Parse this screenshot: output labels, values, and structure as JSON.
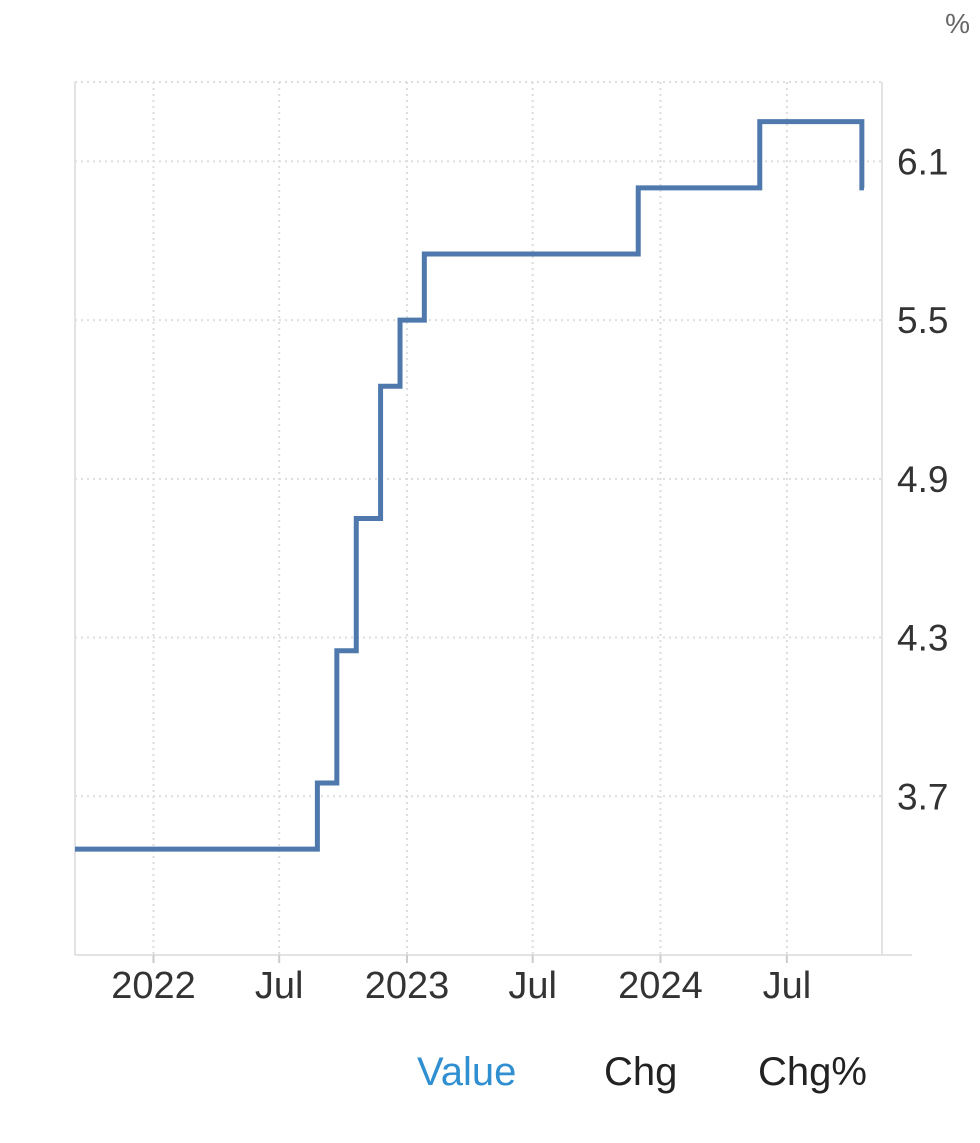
{
  "unit_label": "%",
  "colors": {
    "line": "#4f79ad",
    "active_tab": "#2f8fd0",
    "inactive_tab": "#222222",
    "grid": "#dddddd"
  },
  "tabs": [
    {
      "label": "Value",
      "active": true
    },
    {
      "label": "Chg",
      "active": false
    },
    {
      "label": "Chg%",
      "active": false
    }
  ],
  "chart_data": {
    "type": "line",
    "step": true,
    "title": "",
    "xlabel": "",
    "ylabel": "%",
    "grid": true,
    "xlim": [
      "2021-09-10",
      "2024-11-15"
    ],
    "ylim": [
      3.1,
      6.4
    ],
    "x_ticks": [
      {
        "date": "2022-01-01",
        "label": "2022"
      },
      {
        "date": "2022-07-01",
        "label": "Jul"
      },
      {
        "date": "2023-01-01",
        "label": "2023"
      },
      {
        "date": "2023-07-01",
        "label": "Jul"
      },
      {
        "date": "2024-01-01",
        "label": "2024"
      },
      {
        "date": "2024-07-01",
        "label": "Jul"
      }
    ],
    "y_ticks": [
      3.7,
      4.3,
      4.9,
      5.5,
      6.1
    ],
    "series": [
      {
        "points": [
          {
            "x": "2021-09-10",
            "y": 3.5
          },
          {
            "x": "2022-08-25",
            "y": 3.75
          },
          {
            "x": "2022-09-22",
            "y": 4.25
          },
          {
            "x": "2022-10-20",
            "y": 4.75
          },
          {
            "x": "2022-11-24",
            "y": 5.25
          },
          {
            "x": "2022-12-22",
            "y": 5.5
          },
          {
            "x": "2023-01-26",
            "y": 5.75
          },
          {
            "x": "2023-11-30",
            "y": 6.0
          },
          {
            "x": "2024-05-23",
            "y": 6.25
          },
          {
            "x": "2024-10-17",
            "y": 6.0
          }
        ],
        "end": "2024-10-20"
      }
    ]
  }
}
